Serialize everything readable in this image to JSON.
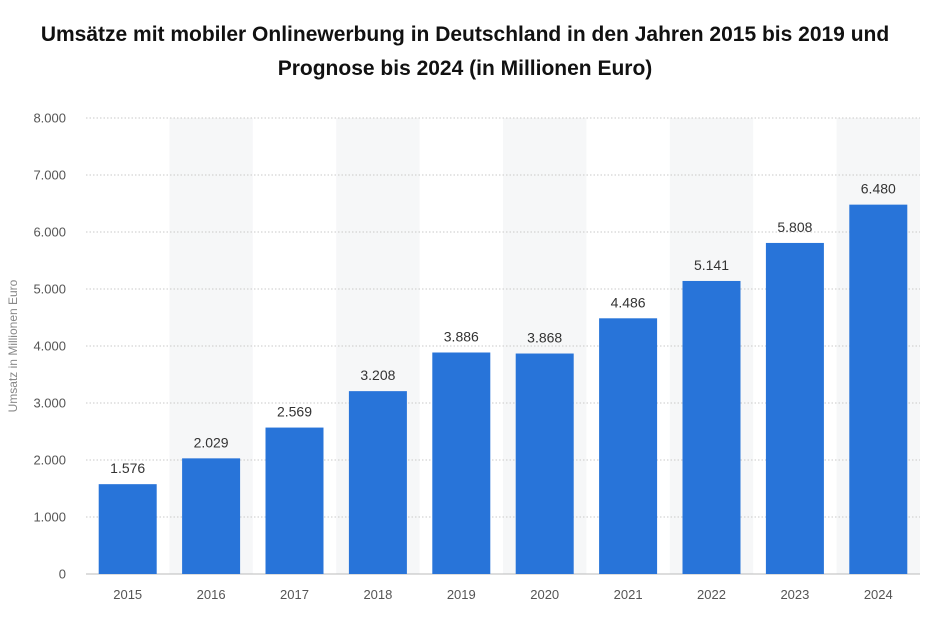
{
  "chart_data": {
    "type": "bar",
    "title_lines": [
      "Umsätze mit mobiler Onlinewerbung in Deutschland in den Jahren 2015 bis 2019 und",
      "Prognose bis 2024 (in Millionen Euro)"
    ],
    "ylabel": "Umsatz in Millionen Euro",
    "xlabel": "",
    "categories": [
      "2015",
      "2016",
      "2017",
      "2018",
      "2019",
      "2020",
      "2021",
      "2022",
      "2023",
      "2024"
    ],
    "values": [
      1576,
      2029,
      2569,
      3208,
      3886,
      3868,
      4486,
      5141,
      5808,
      6480
    ],
    "value_labels": [
      "1.576",
      "2.029",
      "2.569",
      "3.208",
      "3.886",
      "3.868",
      "4.486",
      "5.141",
      "5.808",
      "6.480"
    ],
    "ylim": [
      0,
      8000
    ],
    "yticks": [
      0,
      1000,
      2000,
      3000,
      4000,
      5000,
      6000,
      7000,
      8000
    ],
    "ytick_labels": [
      "0",
      "1.000",
      "2.000",
      "3.000",
      "4.000",
      "5.000",
      "6.000",
      "7.000",
      "8.000"
    ],
    "grid": true,
    "bar_color": "#2874d9",
    "band_color": "#f6f7f8",
    "grid_color": "#c9c9c9"
  }
}
